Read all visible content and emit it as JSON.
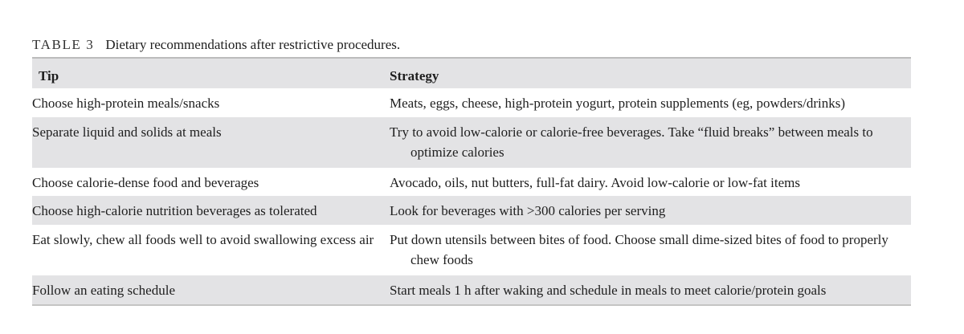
{
  "caption": {
    "label": "TABLE 3",
    "text": "Dietary recommendations after restrictive procedures."
  },
  "table": {
    "headers": [
      "Tip",
      "Strategy"
    ],
    "rows": [
      {
        "tip": "Choose high-protein meals/snacks",
        "strategy": "Meats, eggs, cheese, high-protein yogurt, protein supplements (eg, powders/drinks)"
      },
      {
        "tip": "Separate liquid and solids at meals",
        "strategy": "Try to avoid low-calorie or calorie-free beverages. Take “fluid breaks” between meals to optimize calories"
      },
      {
        "tip": "Choose calorie-dense food and beverages",
        "strategy": "Avocado, oils, nut butters, full-fat dairy. Avoid low-calorie or low-fat items"
      },
      {
        "tip": "Choose high-calorie nutrition beverages as tolerated",
        "strategy": "Look for beverages with >300 calories per serving"
      },
      {
        "tip": "Eat slowly, chew all foods well to avoid swallowing excess air",
        "strategy": "Put down utensils between bites of food. Choose small dime-sized bites of food to properly chew foods"
      },
      {
        "tip": "Follow an eating schedule",
        "strategy": "Start meals 1 h after waking and schedule in meals to meet calorie/protein goals"
      }
    ]
  },
  "colors": {
    "row_shade": "#e3e3e5",
    "rule": "#bcbcbc",
    "text": "#1e1e1e"
  }
}
